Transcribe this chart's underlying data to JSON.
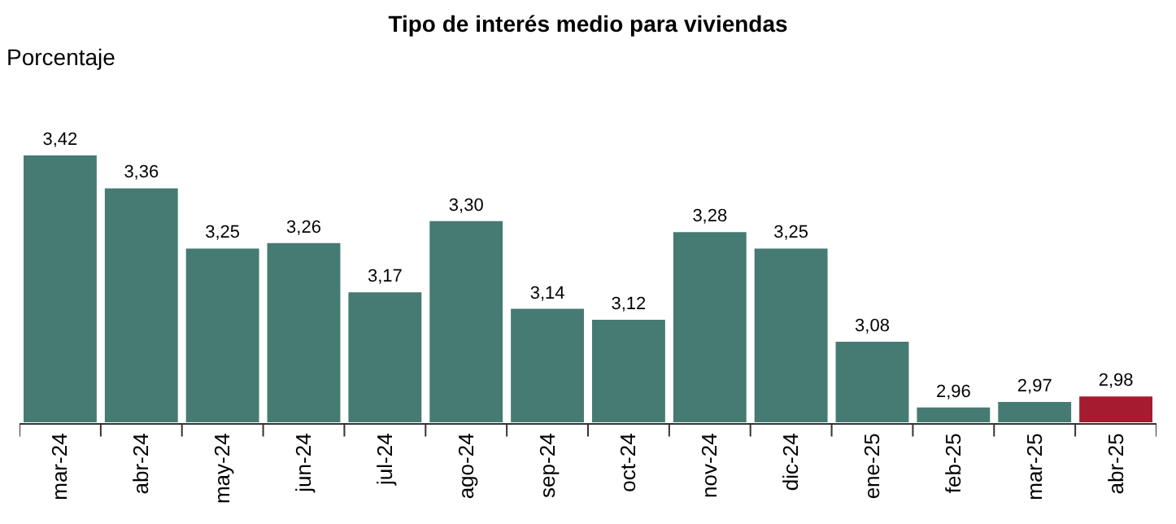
{
  "chart_data": {
    "type": "bar",
    "title": "Tipo de interés medio para viviendas",
    "ylabel": "Porcentaje",
    "categories": [
      "mar-24",
      "abr-24",
      "may-24",
      "jun-24",
      "jul-24",
      "ago-24",
      "sep-24",
      "oct-24",
      "nov-24",
      "dic-24",
      "ene-25",
      "feb-25",
      "mar-25",
      "abr-25"
    ],
    "values": [
      3.42,
      3.36,
      3.25,
      3.26,
      3.17,
      3.3,
      3.14,
      3.12,
      3.28,
      3.25,
      3.08,
      2.96,
      2.97,
      2.98
    ],
    "value_labels": [
      "3,42",
      "3,36",
      "3,25",
      "3,26",
      "3,17",
      "3,30",
      "3,14",
      "3,12",
      "3,28",
      "3,25",
      "3,08",
      "2,96",
      "2,97",
      "2,98"
    ],
    "colors": [
      "#457b72",
      "#457b72",
      "#457b72",
      "#457b72",
      "#457b72",
      "#457b72",
      "#457b72",
      "#457b72",
      "#457b72",
      "#457b72",
      "#457b72",
      "#457b72",
      "#457b72",
      "#a51c30"
    ],
    "ylim": [
      2.93,
      3.42
    ],
    "tick_labels": "x"
  }
}
